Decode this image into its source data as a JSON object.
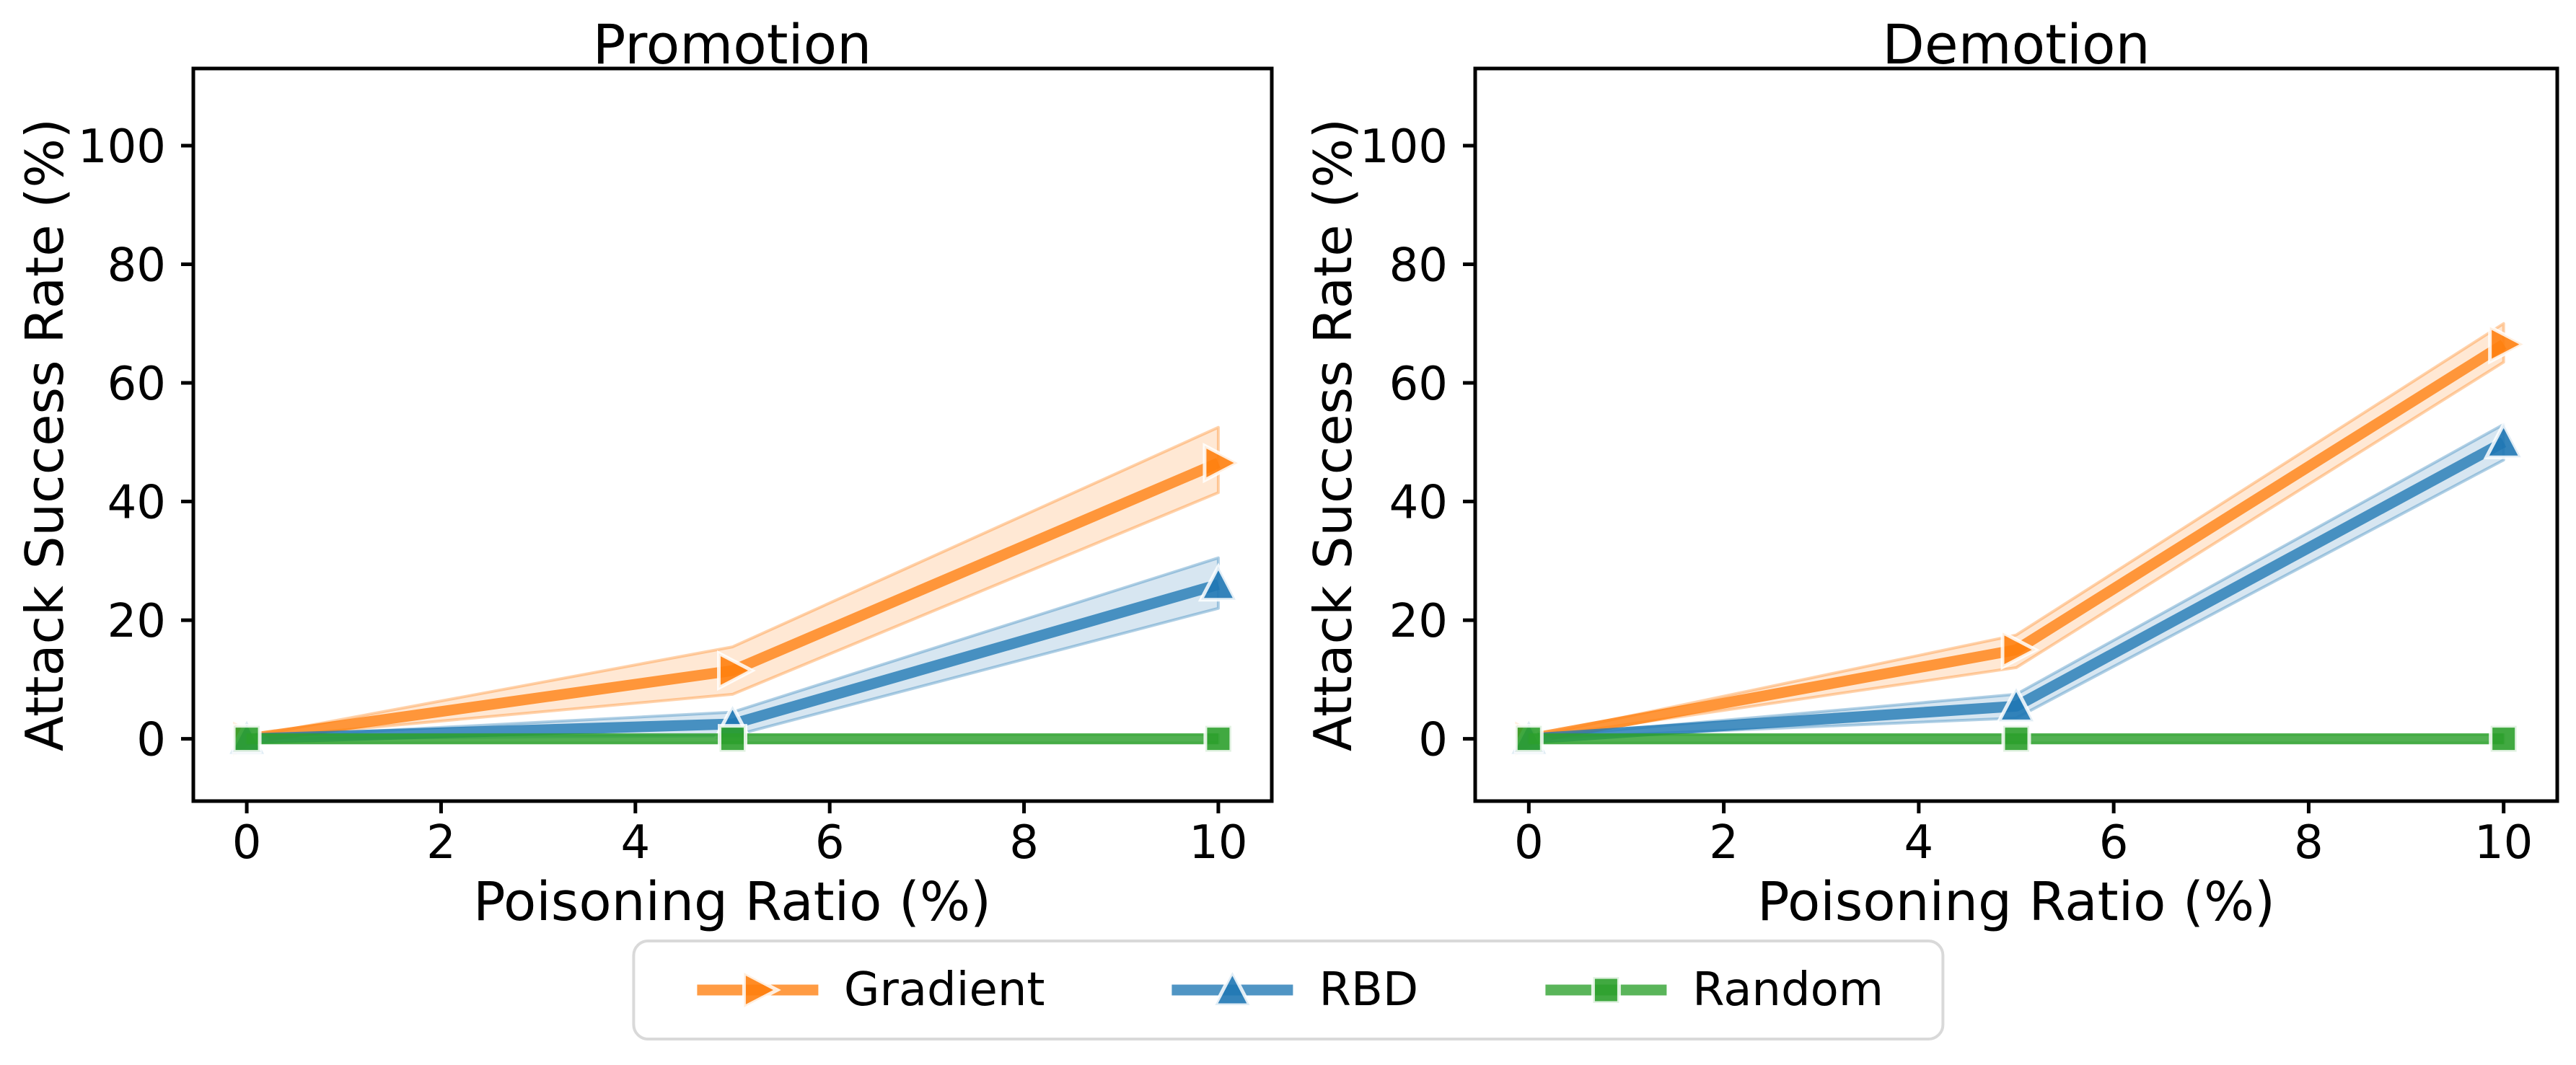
{
  "figure": {
    "legend": {
      "items": [
        {
          "label": "Gradient",
          "marker": "triangle-right",
          "color": "#ff7f0e"
        },
        {
          "label": "RBD",
          "marker": "triangle-up",
          "color": "#1f77b4"
        },
        {
          "label": "Random",
          "marker": "square",
          "color": "#2ca02c"
        }
      ]
    },
    "colors": {
      "spine": "#000000",
      "text": "#000000",
      "legend_border": "#d9d9d9",
      "background": "#ffffff"
    }
  },
  "chart_data": [
    {
      "type": "line",
      "title": "Promotion",
      "xlabel": "Poisoning Ratio (%)",
      "ylabel": "Attack Success Rate (%)",
      "x": [
        0,
        5,
        10
      ],
      "xticks": [
        0,
        2,
        4,
        6,
        8,
        10
      ],
      "yticks": [
        0,
        20,
        40,
        60,
        80,
        100
      ],
      "xlim": [
        -0.55,
        10.55
      ],
      "ylim": [
        -10.5,
        113
      ],
      "grid": false,
      "legend_position": "below-figure",
      "series": [
        {
          "name": "Gradient",
          "marker": "triangle-right",
          "color": "#ff7f0e",
          "values": [
            0,
            11.5,
            46.5
          ],
          "band_lower": [
            0,
            7.5,
            41.5
          ],
          "band_upper": [
            0.3,
            15.5,
            52.5
          ]
        },
        {
          "name": "RBD",
          "marker": "triangle-up",
          "color": "#1f77b4",
          "values": [
            0,
            2.5,
            26
          ],
          "band_lower": [
            0,
            0.5,
            22
          ],
          "band_upper": [
            0.2,
            4.5,
            30.5
          ]
        },
        {
          "name": "Random",
          "marker": "square",
          "color": "#2ca02c",
          "values": [
            0,
            0,
            0
          ],
          "band_lower": [
            -0.7,
            -0.7,
            -0.7
          ],
          "band_upper": [
            0.7,
            0.7,
            0.7
          ]
        }
      ]
    },
    {
      "type": "line",
      "title": "Demotion",
      "xlabel": "Poisoning Ratio (%)",
      "ylabel": "Attack Success Rate (%)",
      "x": [
        0,
        5,
        10
      ],
      "xticks": [
        0,
        2,
        4,
        6,
        8,
        10
      ],
      "yticks": [
        0,
        20,
        40,
        60,
        80,
        100
      ],
      "xlim": [
        -0.55,
        10.55
      ],
      "ylim": [
        -10.5,
        113
      ],
      "grid": false,
      "legend_position": "below-figure",
      "series": [
        {
          "name": "Gradient",
          "marker": "triangle-right",
          "color": "#ff7f0e",
          "values": [
            0,
            15,
            66.5
          ],
          "band_lower": [
            0,
            12,
            63.5
          ],
          "band_upper": [
            0.3,
            17.5,
            70
          ]
        },
        {
          "name": "RBD",
          "marker": "triangle-up",
          "color": "#1f77b4",
          "values": [
            0,
            5.5,
            50
          ],
          "band_lower": [
            0,
            3.5,
            47
          ],
          "band_upper": [
            0.2,
            7.5,
            53
          ]
        },
        {
          "name": "Random",
          "marker": "square",
          "color": "#2ca02c",
          "values": [
            0,
            0,
            0
          ],
          "band_lower": [
            -0.7,
            -0.7,
            -0.7
          ],
          "band_upper": [
            0.7,
            0.7,
            0.7
          ]
        }
      ]
    }
  ]
}
